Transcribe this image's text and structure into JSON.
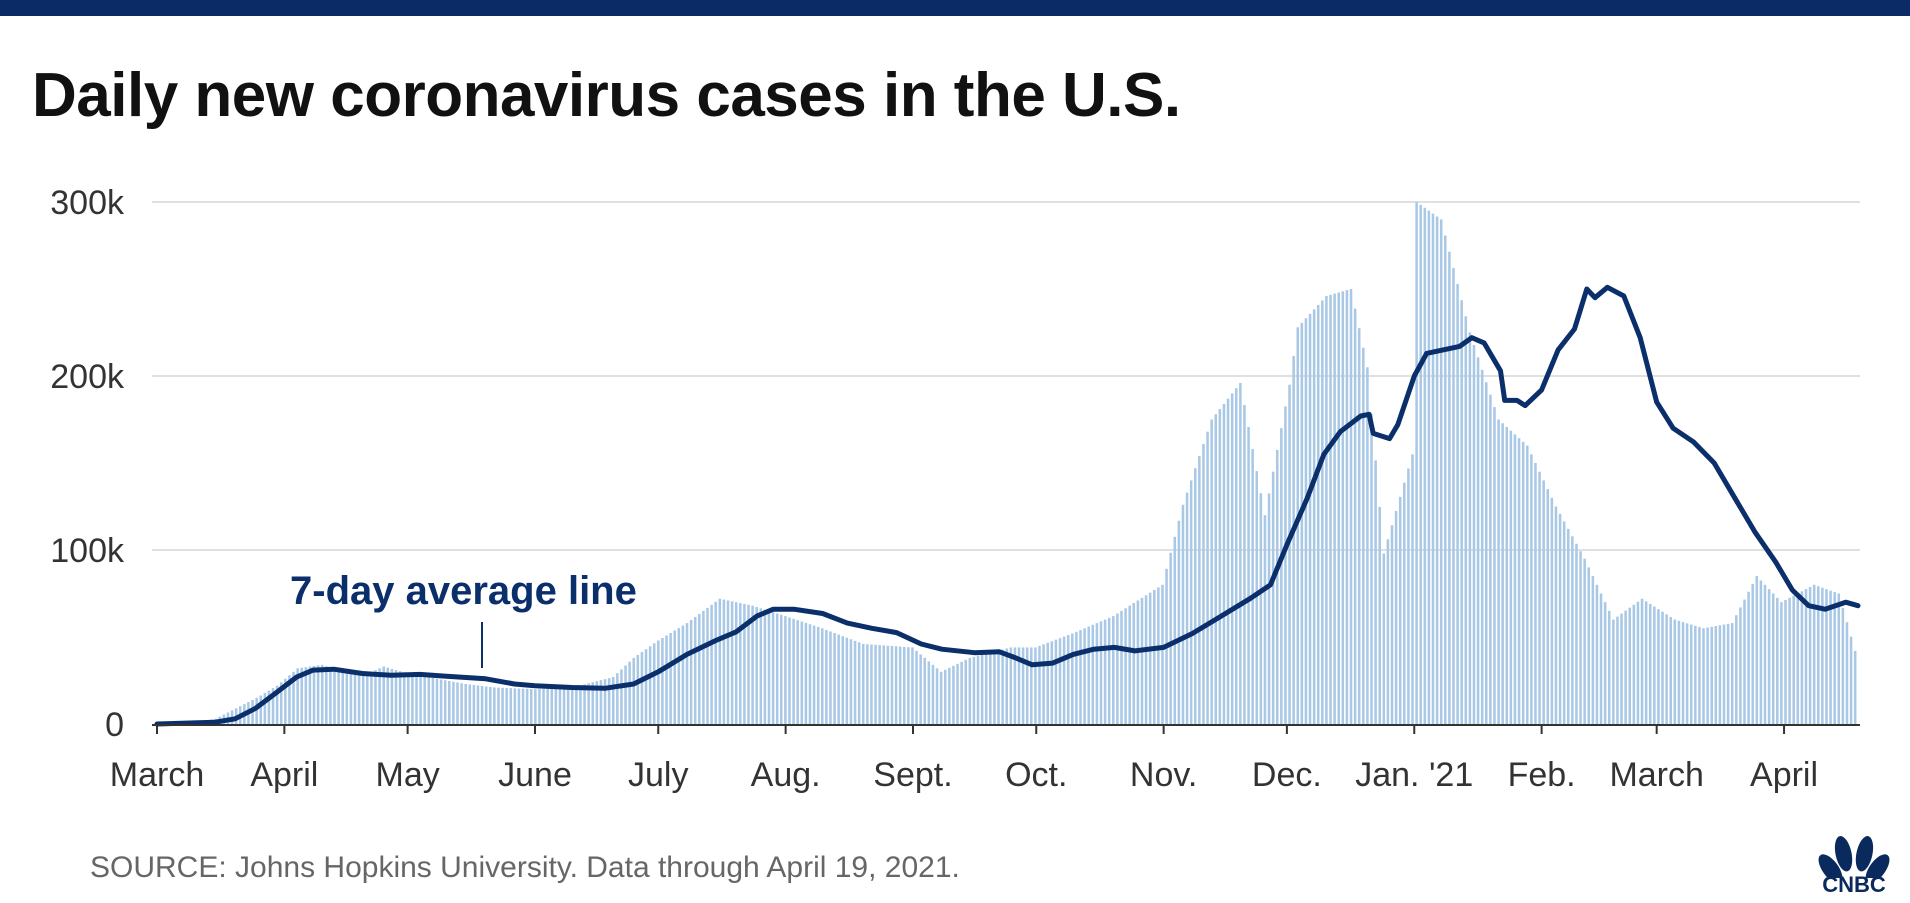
{
  "title": "Daily new coronavirus cases in the U.S.",
  "source": "SOURCE: Johns Hopkins University. Data through April 19, 2021.",
  "annotation": "7-day average line",
  "logo_text": "CNBC",
  "colors": {
    "topbar": "#0b2b67",
    "bars": "#a9c8e6",
    "line": "#0a2f6b",
    "grid": "#d6d6d6",
    "annotation": "#0a2f6b"
  },
  "chart_data": {
    "type": "bar",
    "title": "Daily new coronavirus cases in the U.S.",
    "xlabel": "",
    "ylabel": "",
    "ylim": [
      0,
      300000
    ],
    "yticks": [
      0,
      100000,
      200000,
      300000
    ],
    "ytick_labels": [
      "0",
      "100k",
      "200k",
      "300k"
    ],
    "x_start": "2020-03-01",
    "x_end": "2021-04-19",
    "xtick_dates": [
      "2020-03-01",
      "2020-04-01",
      "2020-05-01",
      "2020-06-01",
      "2020-07-01",
      "2020-08-01",
      "2020-09-01",
      "2020-10-01",
      "2020-11-01",
      "2020-12-01",
      "2021-01-01",
      "2021-02-01",
      "2021-03-01",
      "2021-04-01"
    ],
    "xtick_labels": [
      "March",
      "April",
      "May",
      "June",
      "July",
      "Aug.",
      "Sept.",
      "Oct.",
      "Nov.",
      "Dec.",
      "Jan. '21",
      "Feb.",
      "March",
      "April"
    ],
    "grid": true,
    "series": [
      {
        "name": "Daily new cases",
        "kind": "bar",
        "points": [
          [
            "2020-03-01",
            100
          ],
          [
            "2020-03-10",
            1000
          ],
          [
            "2020-03-15",
            3000
          ],
          [
            "2020-03-20",
            9000
          ],
          [
            "2020-03-25",
            15000
          ],
          [
            "2020-03-30",
            22000
          ],
          [
            "2020-04-04",
            32000
          ],
          [
            "2020-04-10",
            34000
          ],
          [
            "2020-04-15",
            30000
          ],
          [
            "2020-04-20",
            28000
          ],
          [
            "2020-04-25",
            33000
          ],
          [
            "2020-05-01",
            29000
          ],
          [
            "2020-05-08",
            26000
          ],
          [
            "2020-05-15",
            23000
          ],
          [
            "2020-05-22",
            21000
          ],
          [
            "2020-06-01",
            20000
          ],
          [
            "2020-06-10",
            21000
          ],
          [
            "2020-06-20",
            27000
          ],
          [
            "2020-06-25",
            38000
          ],
          [
            "2020-07-01",
            48000
          ],
          [
            "2020-07-08",
            58000
          ],
          [
            "2020-07-16",
            72000
          ],
          [
            "2020-07-24",
            68000
          ],
          [
            "2020-08-01",
            62000
          ],
          [
            "2020-08-10",
            55000
          ],
          [
            "2020-08-20",
            46000
          ],
          [
            "2020-09-01",
            44000
          ],
          [
            "2020-09-08",
            30000
          ],
          [
            "2020-09-15",
            38000
          ],
          [
            "2020-09-25",
            44000
          ],
          [
            "2020-10-01",
            44000
          ],
          [
            "2020-10-10",
            52000
          ],
          [
            "2020-10-20",
            62000
          ],
          [
            "2020-11-01",
            80000
          ],
          [
            "2020-11-06",
            126000
          ],
          [
            "2020-11-13",
            175000
          ],
          [
            "2020-11-20",
            196000
          ],
          [
            "2020-11-26",
            120000
          ],
          [
            "2020-12-02",
            195000
          ],
          [
            "2020-12-04",
            228000
          ],
          [
            "2020-12-11",
            246000
          ],
          [
            "2020-12-17",
            250000
          ],
          [
            "2020-12-21",
            205000
          ],
          [
            "2020-12-25",
            98000
          ],
          [
            "2021-01-01",
            155000
          ],
          [
            "2021-01-02",
            300000
          ],
          [
            "2021-01-08",
            290000
          ],
          [
            "2021-01-15",
            225000
          ],
          [
            "2021-01-22",
            175000
          ],
          [
            "2021-01-29",
            160000
          ],
          [
            "2021-02-05",
            125000
          ],
          [
            "2021-02-12",
            95000
          ],
          [
            "2021-02-19",
            60000
          ],
          [
            "2021-02-26",
            72000
          ],
          [
            "2021-03-06",
            60000
          ],
          [
            "2021-03-13",
            55000
          ],
          [
            "2021-03-20",
            58000
          ],
          [
            "2021-03-26",
            85000
          ],
          [
            "2021-04-01",
            70000
          ],
          [
            "2021-04-09",
            80000
          ],
          [
            "2021-04-15",
            75000
          ],
          [
            "2021-04-19",
            42000
          ]
        ]
      },
      {
        "name": "7-day average line",
        "kind": "line",
        "points": [
          [
            "2020-03-01",
            0
          ],
          [
            "2020-03-15",
            1000
          ],
          [
            "2020-03-20",
            3000
          ],
          [
            "2020-03-25",
            9000
          ],
          [
            "2020-03-30",
            18000
          ],
          [
            "2020-04-04",
            27000
          ],
          [
            "2020-04-08",
            31000
          ],
          [
            "2020-04-13",
            31500
          ],
          [
            "2020-04-20",
            29000
          ],
          [
            "2020-04-27",
            28000
          ],
          [
            "2020-05-04",
            28500
          ],
          [
            "2020-05-10",
            27500
          ],
          [
            "2020-05-20",
            26000
          ],
          [
            "2020-05-27",
            23000
          ],
          [
            "2020-06-01",
            22000
          ],
          [
            "2020-06-10",
            21000
          ],
          [
            "2020-06-18",
            20500
          ],
          [
            "2020-06-25",
            23000
          ],
          [
            "2020-07-01",
            30000
          ],
          [
            "2020-07-08",
            40000
          ],
          [
            "2020-07-15",
            48000
          ],
          [
            "2020-07-20",
            53000
          ],
          [
            "2020-07-25",
            62000
          ],
          [
            "2020-07-29",
            66000
          ],
          [
            "2020-08-03",
            66000
          ],
          [
            "2020-08-10",
            63500
          ],
          [
            "2020-08-16",
            58000
          ],
          [
            "2020-08-22",
            55000
          ],
          [
            "2020-08-28",
            52500
          ],
          [
            "2020-09-03",
            46000
          ],
          [
            "2020-09-08",
            43000
          ],
          [
            "2020-09-16",
            41000
          ],
          [
            "2020-09-22",
            41500
          ],
          [
            "2020-09-26",
            38000
          ],
          [
            "2020-09-30",
            34000
          ],
          [
            "2020-10-05",
            35000
          ],
          [
            "2020-10-10",
            40000
          ],
          [
            "2020-10-15",
            43000
          ],
          [
            "2020-10-20",
            44000
          ],
          [
            "2020-10-25",
            42000
          ],
          [
            "2020-11-01",
            44000
          ],
          [
            "2020-11-08",
            52000
          ],
          [
            "2020-11-15",
            62000
          ],
          [
            "2020-11-22",
            72000
          ],
          [
            "2020-11-27",
            80000
          ],
          [
            "2020-12-01",
            103000
          ],
          [
            "2020-12-06",
            130000
          ],
          [
            "2020-12-10",
            155000
          ],
          [
            "2020-12-14",
            168000
          ],
          [
            "2020-12-19",
            177000
          ],
          [
            "2020-12-21",
            178000
          ],
          [
            "2020-12-22",
            167000
          ],
          [
            "2020-12-26",
            164000
          ],
          [
            "2020-12-28",
            172000
          ],
          [
            "2021-01-01",
            200000
          ],
          [
            "2021-01-04",
            213000
          ],
          [
            "2021-01-08",
            215000
          ],
          [
            "2021-01-12",
            217000
          ],
          [
            "2021-01-15",
            222000
          ],
          [
            "2021-01-18",
            219000
          ],
          [
            "2021-01-22",
            203000
          ],
          [
            "2021-01-23",
            186000
          ],
          [
            "2021-01-26",
            186000
          ],
          [
            "2021-01-28",
            183000
          ],
          [
            "2021-02-01",
            192000
          ],
          [
            "2021-02-05",
            215000
          ],
          [
            "2021-02-09",
            227000
          ],
          [
            "2021-02-12",
            250000
          ],
          [
            "2021-02-14",
            245000
          ],
          [
            "2021-02-17",
            251000
          ],
          [
            "2021-02-21",
            246000
          ],
          [
            "2021-02-25",
            222000
          ],
          [
            "2021-03-01",
            185000
          ],
          [
            "2021-03-05",
            170000
          ],
          [
            "2021-03-10",
            162000
          ],
          [
            "2021-03-15",
            150000
          ],
          [
            "2021-03-20",
            130000
          ],
          [
            "2021-03-25",
            110000
          ],
          [
            "2021-03-30",
            93000
          ],
          [
            "2021-04-03",
            77000
          ],
          [
            "2021-04-07",
            68000
          ],
          [
            "2021-04-11",
            66000
          ],
          [
            "2021-04-16",
            70000
          ],
          [
            "2021-04-19",
            68000
          ]
        ]
      }
    ]
  }
}
